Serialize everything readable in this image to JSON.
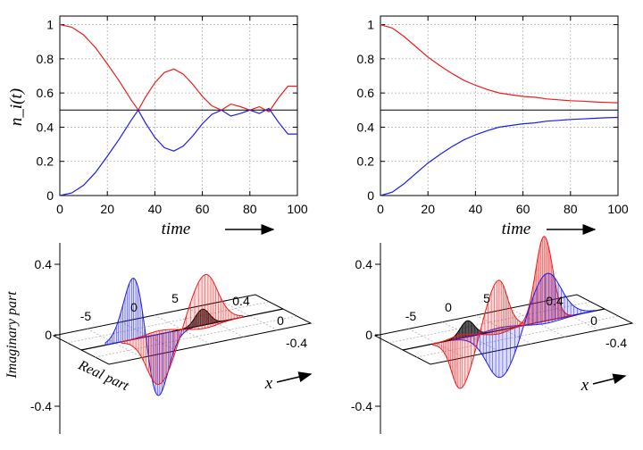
{
  "colors": {
    "red": "#ee1c1c",
    "blue": "#1c1cee",
    "black": "#000000",
    "gray": "#555555"
  },
  "chart_data": [
    {
      "type": "line",
      "xlabel": "time",
      "ylabel": "n_i(t)",
      "xlim": [
        0,
        100
      ],
      "ylim": [
        0,
        1.05
      ],
      "xticks": [
        "0",
        "20",
        "40",
        "60",
        "80",
        "100"
      ],
      "yticks": [
        "0",
        "0.2",
        "0.4",
        "0.6",
        "0.8",
        "1"
      ],
      "grid": true,
      "reference_line": 0.5,
      "series": [
        {
          "color": "red",
          "x": [
            0,
            5,
            10,
            15,
            20,
            25,
            30,
            33,
            36,
            40,
            44,
            48,
            52,
            56,
            60,
            64,
            68,
            72,
            76,
            80,
            84,
            88,
            92,
            96,
            100
          ],
          "values": [
            1.0,
            0.985,
            0.94,
            0.865,
            0.77,
            0.67,
            0.56,
            0.5,
            0.575,
            0.66,
            0.72,
            0.74,
            0.71,
            0.65,
            0.58,
            0.525,
            0.5,
            0.535,
            0.52,
            0.5,
            0.52,
            0.49,
            0.57,
            0.64,
            0.64
          ]
        },
        {
          "color": "blue",
          "x": [
            0,
            5,
            10,
            15,
            20,
            25,
            30,
            33,
            36,
            40,
            44,
            48,
            52,
            56,
            60,
            64,
            68,
            72,
            76,
            80,
            84,
            88,
            92,
            96,
            100
          ],
          "values": [
            0.0,
            0.015,
            0.06,
            0.135,
            0.23,
            0.33,
            0.44,
            0.5,
            0.425,
            0.34,
            0.28,
            0.26,
            0.29,
            0.35,
            0.42,
            0.475,
            0.5,
            0.465,
            0.48,
            0.5,
            0.48,
            0.51,
            0.43,
            0.36,
            0.36
          ]
        }
      ]
    },
    {
      "type": "line",
      "xlabel": "time",
      "xlim": [
        0,
        100
      ],
      "ylim": [
        0,
        1.05
      ],
      "xticks": [
        "0",
        "20",
        "40",
        "60",
        "80",
        "100"
      ],
      "yticks": [
        "0",
        "0.2",
        "0.4",
        "0.6",
        "0.8",
        "1"
      ],
      "grid": true,
      "reference_line": 0.5,
      "series": [
        {
          "color": "red",
          "x": [
            0,
            5,
            10,
            15,
            20,
            25,
            30,
            35,
            40,
            45,
            50,
            55,
            60,
            65,
            70,
            75,
            80,
            85,
            90,
            95,
            100
          ],
          "values": [
            1.0,
            0.98,
            0.93,
            0.87,
            0.81,
            0.76,
            0.715,
            0.675,
            0.645,
            0.62,
            0.6,
            0.59,
            0.58,
            0.575,
            0.565,
            0.56,
            0.555,
            0.552,
            0.548,
            0.545,
            0.543
          ]
        },
        {
          "color": "blue",
          "x": [
            0,
            5,
            10,
            15,
            20,
            25,
            30,
            35,
            40,
            45,
            50,
            55,
            60,
            65,
            70,
            75,
            80,
            85,
            90,
            95,
            100
          ],
          "values": [
            0.0,
            0.02,
            0.07,
            0.13,
            0.19,
            0.24,
            0.285,
            0.325,
            0.355,
            0.38,
            0.4,
            0.41,
            0.42,
            0.425,
            0.435,
            0.44,
            0.445,
            0.448,
            0.452,
            0.455,
            0.457
          ]
        }
      ]
    },
    {
      "type": "surface-3d",
      "zlabel": "Imaginary part",
      "ylabel": "Real part",
      "xlabel": "x",
      "xticks": [
        "-5",
        "0",
        "5"
      ],
      "yticks": [
        "0.4",
        "0",
        "-0.4"
      ],
      "zticks": [
        "0.4",
        "0",
        "-0.4"
      ]
    },
    {
      "type": "surface-3d",
      "xlabel": "x",
      "xticks": [
        "-5",
        "0",
        "5"
      ],
      "yticks": [
        "0.4",
        "0",
        "-0.4"
      ],
      "zticks": [
        "0.4",
        "0",
        "-0.4"
      ]
    }
  ]
}
